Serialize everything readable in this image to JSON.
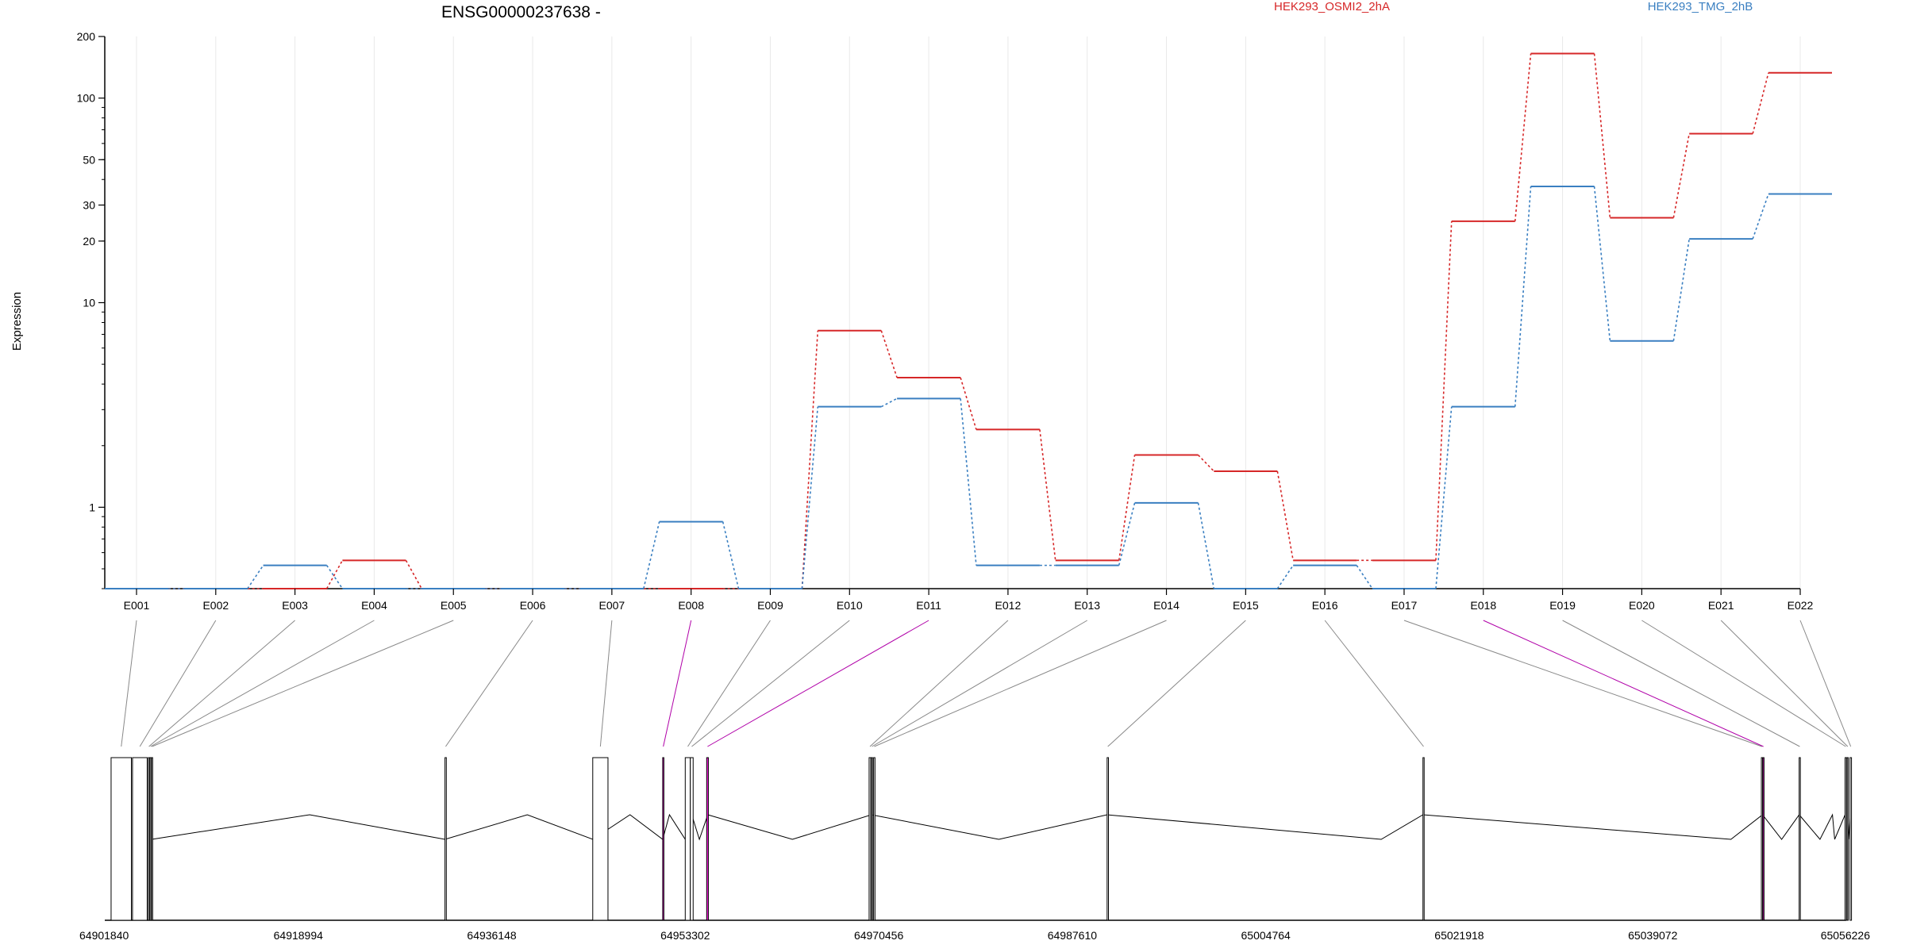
{
  "chart_data": {
    "type": "line",
    "title": "ENSG00000237638 -",
    "ylabel": "Expression",
    "yscale": "log",
    "ylim": [
      0.4,
      200
    ],
    "yticks": [
      {
        "value": 200,
        "label": "200"
      },
      {
        "value": 100,
        "label": "100"
      },
      {
        "value": 50,
        "label": "50"
      },
      {
        "value": 30,
        "label": "30"
      },
      {
        "value": 20,
        "label": "20"
      },
      {
        "value": 10,
        "label": "10"
      },
      {
        "value": 1,
        "label": "1"
      }
    ],
    "grid": "vertical",
    "legend_position": "top-right",
    "categories": [
      "E001",
      "E002",
      "E003",
      "E004",
      "E005",
      "E006",
      "E007",
      "E008",
      "E009",
      "E010",
      "E011",
      "E012",
      "E013",
      "E014",
      "E015",
      "E016",
      "E017",
      "E018",
      "E019",
      "E020",
      "E021",
      "E022"
    ],
    "series": [
      {
        "name": "HEK293_OSMI2_2hA",
        "color": "#d62728",
        "values": [
          0.4,
          0.4,
          0.4,
          0.55,
          0.4,
          0.4,
          0.4,
          0.4,
          0.4,
          7.3,
          4.3,
          2.4,
          0.55,
          1.8,
          1.5,
          0.55,
          0.55,
          25,
          165,
          26,
          67,
          133
        ]
      },
      {
        "name": "HEK293_TMG_2hB",
        "color": "#3a7fc1",
        "values": [
          0.4,
          0.4,
          0.52,
          0.4,
          0.4,
          0.4,
          0.4,
          0.85,
          0.4,
          3.1,
          3.4,
          0.52,
          0.52,
          1.05,
          0.4,
          0.52,
          0.4,
          3.1,
          37,
          6.5,
          20.5,
          34
        ]
      }
    ],
    "gene_model": {
      "genomic_ticks": [
        "64901840",
        "64918994",
        "64936148",
        "64953302",
        "64970456",
        "64987610",
        "65004764",
        "65021918",
        "65039072",
        "65056226"
      ],
      "gmin": 64901840,
      "gmax": 65056226,
      "highlighted_exons": [
        "E008",
        "E011",
        "E018"
      ],
      "highlight_color": "#ff1fe8",
      "exon_spans": [
        [
          64902400,
          64904200
        ],
        [
          64904300,
          64905600
        ],
        [
          64905700,
          64905800
        ],
        [
          64905850,
          64905950
        ],
        [
          64905980,
          64906030
        ],
        [
          64932000,
          64932120
        ],
        [
          64945100,
          64946450
        ],
        [
          64951300,
          64951400
        ],
        [
          64953300,
          64953750
        ],
        [
          64953750,
          64954000
        ],
        [
          64955200,
          64955350
        ],
        [
          64969600,
          64969750
        ],
        [
          64969800,
          64969900
        ],
        [
          64970000,
          64970120
        ],
        [
          64990700,
          64990820
        ],
        [
          65018700,
          65018800
        ],
        [
          65048700,
          65048800
        ],
        [
          65048830,
          65048930
        ],
        [
          65052050,
          65052150
        ],
        [
          65056120,
          65056240
        ],
        [
          65056300,
          65056400
        ],
        [
          65056560,
          65056690
        ]
      ],
      "spline_points": [
        64906000,
        64920000,
        64932000,
        64939300,
        64945100,
        64948400,
        64951300,
        64951900,
        64953300,
        64953880,
        64954550,
        64955300,
        64962800,
        64969800,
        64981100,
        64990700,
        65015000,
        65018700,
        65046000,
        65048800,
        65050500,
        65052050,
        65053900,
        65055000,
        65055200,
        65056120,
        65056420,
        65056600
      ]
    }
  }
}
